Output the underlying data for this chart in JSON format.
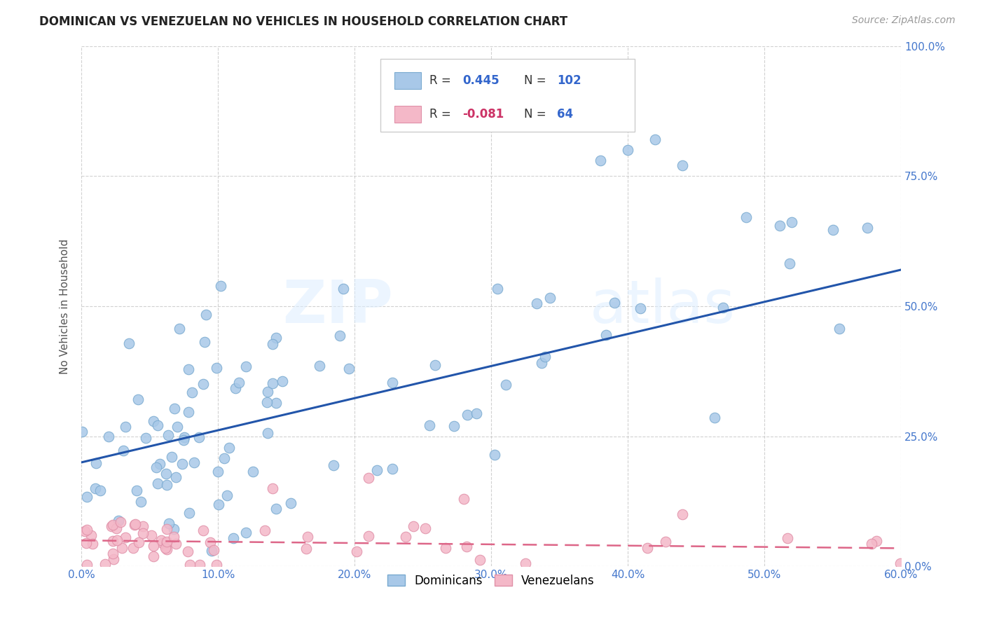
{
  "title": "DOMINICAN VS VENEZUELAN NO VEHICLES IN HOUSEHOLD CORRELATION CHART",
  "source": "Source: ZipAtlas.com",
  "ylabel_label": "No Vehicles in Household",
  "dominican_color": "#a8c8e8",
  "dominican_edge_color": "#7aaad0",
  "venezuelan_color": "#f4b8c8",
  "venezuelan_edge_color": "#e090a8",
  "dominican_line_color": "#2255aa",
  "venezuelan_line_color": "#dd6688",
  "dominican_R": 0.445,
  "dominican_N": 102,
  "venezuelan_R": -0.081,
  "venezuelan_N": 64,
  "watermark_zip": "ZIP",
  "watermark_atlas": "atlas",
  "background_color": "#ffffff",
  "xlim": [
    0.0,
    0.6
  ],
  "ylim": [
    0.0,
    1.0
  ],
  "grid_color": "#cccccc",
  "tick_color": "#4477cc",
  "legend_text_color": "#333333",
  "legend_value_color": "#3366cc",
  "legend_neg_color": "#cc3366",
  "dom_line_y0": 0.2,
  "dom_line_y1": 0.57,
  "ven_line_y0": 0.05,
  "ven_line_y1": 0.035
}
